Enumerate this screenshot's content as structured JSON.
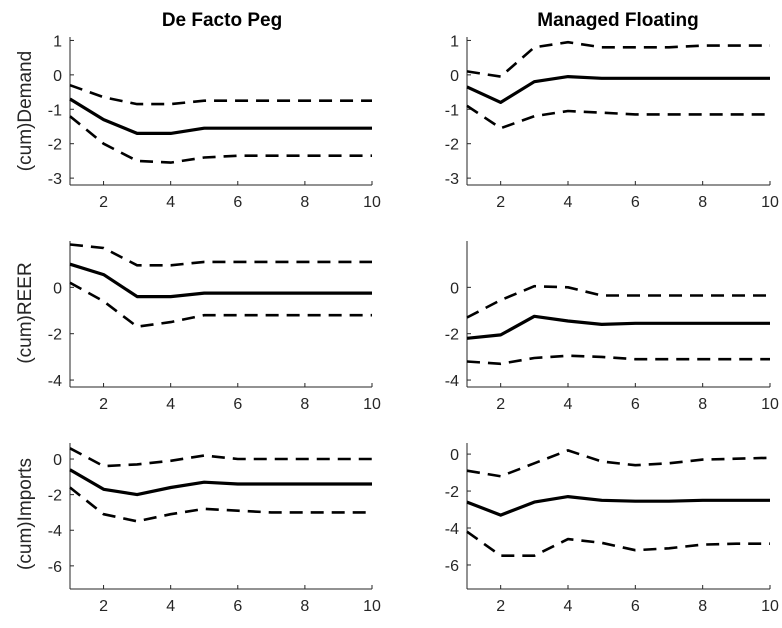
{
  "figure": {
    "column_titles": [
      "De Facto Peg",
      "Managed Floating"
    ],
    "row_labels": [
      "(cum)Demand",
      "(cum)REER",
      "(cum)Imports"
    ]
  },
  "chart_data": [
    {
      "type": "line",
      "row": 0,
      "col": 0,
      "title": "De Facto Peg",
      "ylabel": "(cum)Demand",
      "xlim": [
        1,
        10
      ],
      "ylim": [
        -3.2,
        1.1
      ],
      "xticks": [
        2,
        4,
        6,
        8,
        10
      ],
      "yticks": [
        1,
        0,
        -1,
        -2,
        -3
      ],
      "x": [
        1,
        2,
        3,
        4,
        5,
        6,
        7,
        8,
        9,
        10
      ],
      "series": [
        {
          "role": "estimate",
          "values": [
            -0.7,
            -1.3,
            -1.7,
            -1.7,
            -1.55,
            -1.55,
            -1.55,
            -1.55,
            -1.55,
            -1.55
          ]
        },
        {
          "role": "upper",
          "values": [
            -0.3,
            -0.65,
            -0.85,
            -0.85,
            -0.75,
            -0.75,
            -0.75,
            -0.75,
            -0.75,
            -0.75
          ]
        },
        {
          "role": "lower",
          "values": [
            -1.2,
            -2.0,
            -2.5,
            -2.55,
            -2.4,
            -2.35,
            -2.35,
            -2.35,
            -2.35,
            -2.35
          ]
        }
      ]
    },
    {
      "type": "line",
      "row": 0,
      "col": 1,
      "title": "Managed Floating",
      "ylabel": "",
      "xlim": [
        1,
        10
      ],
      "ylim": [
        -3.2,
        1.1
      ],
      "xticks": [
        2,
        4,
        6,
        8,
        10
      ],
      "yticks": [
        1,
        0,
        -1,
        -2,
        -3
      ],
      "x": [
        1,
        2,
        3,
        4,
        5,
        6,
        7,
        8,
        9,
        10
      ],
      "series": [
        {
          "role": "estimate",
          "values": [
            -0.35,
            -0.8,
            -0.2,
            -0.05,
            -0.1,
            -0.1,
            -0.1,
            -0.1,
            -0.1,
            -0.1
          ]
        },
        {
          "role": "upper",
          "values": [
            0.1,
            -0.05,
            0.8,
            0.95,
            0.8,
            0.8,
            0.8,
            0.85,
            0.85,
            0.85
          ]
        },
        {
          "role": "lower",
          "values": [
            -0.9,
            -1.55,
            -1.2,
            -1.05,
            -1.1,
            -1.15,
            -1.15,
            -1.15,
            -1.15,
            -1.15
          ]
        }
      ]
    },
    {
      "type": "line",
      "row": 1,
      "col": 0,
      "title": "",
      "ylabel": "(cum)REER",
      "xlim": [
        1,
        10
      ],
      "ylim": [
        -4.3,
        2.0
      ],
      "xticks": [
        2,
        4,
        6,
        8,
        10
      ],
      "yticks": [
        0,
        -2,
        -4
      ],
      "x": [
        1,
        2,
        3,
        4,
        5,
        6,
        7,
        8,
        9,
        10
      ],
      "series": [
        {
          "role": "estimate",
          "values": [
            1.0,
            0.55,
            -0.4,
            -0.4,
            -0.25,
            -0.25,
            -0.25,
            -0.25,
            -0.25,
            -0.25
          ]
        },
        {
          "role": "upper",
          "values": [
            1.85,
            1.7,
            0.95,
            0.95,
            1.1,
            1.1,
            1.1,
            1.1,
            1.1,
            1.1
          ]
        },
        {
          "role": "lower",
          "values": [
            0.2,
            -0.6,
            -1.7,
            -1.5,
            -1.2,
            -1.2,
            -1.2,
            -1.2,
            -1.2,
            -1.2
          ]
        }
      ]
    },
    {
      "type": "line",
      "row": 1,
      "col": 1,
      "title": "",
      "ylabel": "",
      "xlim": [
        1,
        10
      ],
      "ylim": [
        -4.3,
        2.0
      ],
      "xticks": [
        2,
        4,
        6,
        8,
        10
      ],
      "yticks": [
        0,
        -2,
        -4
      ],
      "x": [
        1,
        2,
        3,
        4,
        5,
        6,
        7,
        8,
        9,
        10
      ],
      "series": [
        {
          "role": "estimate",
          "values": [
            -2.2,
            -2.05,
            -1.25,
            -1.45,
            -1.6,
            -1.55,
            -1.55,
            -1.55,
            -1.55,
            -1.55
          ]
        },
        {
          "role": "upper",
          "values": [
            -1.3,
            -0.55,
            0.05,
            0.0,
            -0.35,
            -0.35,
            -0.35,
            -0.35,
            -0.35,
            -0.35
          ]
        },
        {
          "role": "lower",
          "values": [
            -3.2,
            -3.3,
            -3.05,
            -2.95,
            -3.0,
            -3.1,
            -3.1,
            -3.1,
            -3.1,
            -3.1
          ]
        }
      ]
    },
    {
      "type": "line",
      "row": 2,
      "col": 0,
      "title": "",
      "ylabel": "(cum)Imports",
      "xlim": [
        1,
        10
      ],
      "ylim": [
        -7.3,
        0.9
      ],
      "xticks": [
        2,
        4,
        6,
        8,
        10
      ],
      "yticks": [
        0,
        -2,
        -4,
        -6
      ],
      "x": [
        1,
        2,
        3,
        4,
        5,
        6,
        7,
        8,
        9,
        10
      ],
      "series": [
        {
          "role": "estimate",
          "values": [
            -0.6,
            -1.7,
            -2.0,
            -1.6,
            -1.3,
            -1.4,
            -1.4,
            -1.4,
            -1.4,
            -1.4
          ]
        },
        {
          "role": "upper",
          "values": [
            0.6,
            -0.4,
            -0.3,
            -0.1,
            0.2,
            0.0,
            0.0,
            0.0,
            0.0,
            0.0
          ]
        },
        {
          "role": "lower",
          "values": [
            -1.6,
            -3.1,
            -3.5,
            -3.1,
            -2.8,
            -2.9,
            -3.0,
            -3.0,
            -3.0,
            -3.0
          ]
        }
      ]
    },
    {
      "type": "line",
      "row": 2,
      "col": 1,
      "title": "",
      "ylabel": "",
      "xlim": [
        1,
        10
      ],
      "ylim": [
        -7.3,
        0.6
      ],
      "xticks": [
        2,
        4,
        6,
        8,
        10
      ],
      "yticks": [
        0,
        -2,
        -4,
        -6
      ],
      "x": [
        1,
        2,
        3,
        4,
        5,
        6,
        7,
        8,
        9,
        10
      ],
      "series": [
        {
          "role": "estimate",
          "values": [
            -2.6,
            -3.3,
            -2.6,
            -2.3,
            -2.5,
            -2.55,
            -2.55,
            -2.5,
            -2.5,
            -2.5
          ]
        },
        {
          "role": "upper",
          "values": [
            -0.9,
            -1.2,
            -0.5,
            0.2,
            -0.4,
            -0.6,
            -0.5,
            -0.3,
            -0.25,
            -0.2
          ]
        },
        {
          "role": "lower",
          "values": [
            -4.2,
            -5.5,
            -5.5,
            -4.6,
            -4.8,
            -5.2,
            -5.1,
            -4.9,
            -4.85,
            -4.85
          ]
        }
      ]
    }
  ]
}
